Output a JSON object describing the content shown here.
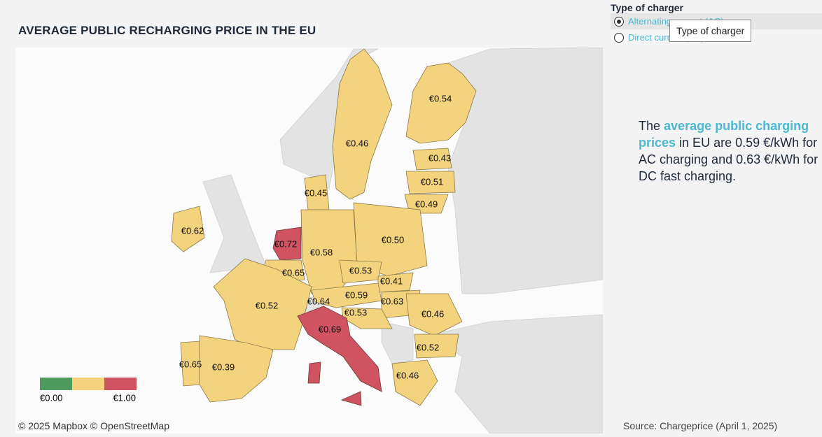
{
  "header": {
    "title": "AVERAGE PUBLIC RECHARGING PRICE IN THE EU"
  },
  "filter": {
    "title": "Type of charger",
    "options": [
      "Alternating current (AC)",
      "Direct current (DC)"
    ],
    "tooltip": "Type of charger"
  },
  "map": {
    "labels": [
      "€0.54",
      "€0.46",
      "€0.43",
      "€0.51",
      "€0.49",
      "€0.45",
      "€0.62",
      "€0.72",
      "€0.58",
      "€0.50",
      "€0.65",
      "€0.53",
      "€0.41",
      "€0.52",
      "€0.64",
      "€0.59",
      "€0.63",
      "€0.53",
      "€0.46",
      "€0.69",
      "€0.52",
      "€0.65",
      "€0.39",
      "€0.46"
    ],
    "legend": {
      "min": "€0.00",
      "max": "€1.00"
    },
    "attribution": "© 2025 Mapbox  © OpenStreetMap"
  },
  "note": {
    "parts": [
      "The ",
      "average public charging prices",
      " in EU are 0.59 €/kWh for AC charging and 0.63 €/kWh for DC fast charging."
    ]
  },
  "source": "Source: Chargeprice (April 1, 2025)"
}
